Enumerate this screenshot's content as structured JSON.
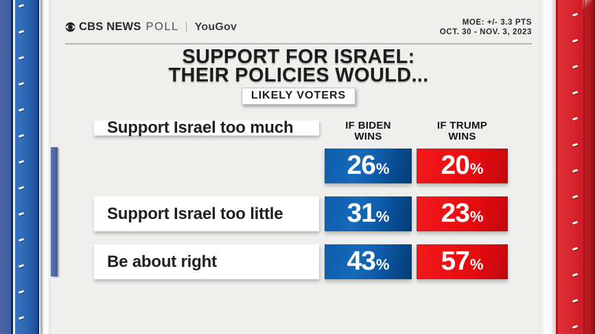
{
  "header": {
    "brand_cbs": "CBS NEWS",
    "brand_poll": "POLL",
    "brand_partner": "YouGov",
    "moe": "MOE: +/- 3.3 PTS",
    "dates": "OCT. 30 - NOV. 3, 2023"
  },
  "title": {
    "line1": "SUPPORT FOR ISRAEL:",
    "line2": "THEIR POLICIES WOULD...",
    "badge": "LIKELY VOTERS"
  },
  "table": {
    "col_biden": {
      "line1": "IF BIDEN",
      "line2": "WINS"
    },
    "col_trump": {
      "line1": "IF TRUMP",
      "line2": "WINS"
    },
    "pct": "%",
    "rows": [
      {
        "label": "Support Israel too much",
        "biden": "26",
        "trump": "20"
      },
      {
        "label": "Support Israel too little",
        "biden": "31",
        "trump": "23"
      },
      {
        "label": "Be about right",
        "biden": "43",
        "trump": "57"
      }
    ]
  },
  "colors": {
    "biden_blue": "#0e5fae",
    "trump_red": "#e60d10",
    "pillar_blue": "#2a66b2",
    "pillar_red": "#d2232a",
    "page_bg": "#efefee"
  },
  "chart_data": {
    "type": "table",
    "title": "SUPPORT FOR ISRAEL: THEIR POLICIES WOULD...",
    "subtitle": "LIKELY VOTERS",
    "categories": [
      "Support Israel too much",
      "Support Israel too little",
      "Be about right"
    ],
    "series": [
      {
        "name": "IF BIDEN WINS",
        "values": [
          26,
          31,
          43
        ],
        "color": "#0e5fae"
      },
      {
        "name": "IF TRUMP WINS",
        "values": [
          20,
          23,
          57
        ],
        "color": "#e60d10"
      }
    ],
    "unit": "%",
    "source": "CBS NEWS POLL | YouGov",
    "moe": "+/- 3.3 PTS",
    "dates": "OCT. 30 - NOV. 3, 2023"
  }
}
